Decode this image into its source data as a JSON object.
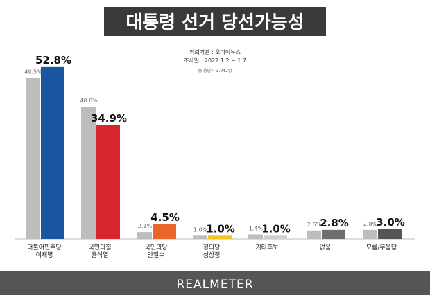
{
  "chart_data": {
    "type": "bar",
    "title": "대통령 선거 당선가능성",
    "notes": [
      "의뢰기관 : 오마이뉴스",
      "조사일 : 2022.1.2 ~ 1.7",
      "총 응답자 3,042명"
    ],
    "footer": "REALMETER",
    "categories": [
      [
        "더불어민주당",
        "이재명"
      ],
      [
        "국민의힘",
        "윤석열"
      ],
      [
        "국민의당",
        "안철수"
      ],
      [
        "정의당",
        "심상정"
      ],
      [
        "기타후보"
      ],
      [
        "없음"
      ],
      [
        "모름/무응답"
      ]
    ],
    "series": [
      {
        "color": "#bdbdbd",
        "values": [
          49.5,
          40.6,
          2.1,
          1.0,
          1.4,
          2.6,
          2.8
        ],
        "value_labels": [
          "49.5%",
          "40.6%",
          "2.1%",
          "1.0%",
          "1.4%",
          "2.6%",
          "2.8%"
        ]
      },
      {
        "colors": [
          "#1b56a0",
          "#d7262f",
          "#ea6529",
          "#f2c521",
          "#cfcfcf",
          "#6e6e6e",
          "#555555"
        ],
        "values": [
          52.8,
          34.9,
          4.5,
          1.0,
          1.0,
          2.8,
          3.0
        ],
        "value_labels": [
          "52.8%",
          "34.9%",
          "4.5%",
          "1.0%",
          "1.0%",
          "2.8%",
          "3.0%"
        ]
      }
    ]
  }
}
